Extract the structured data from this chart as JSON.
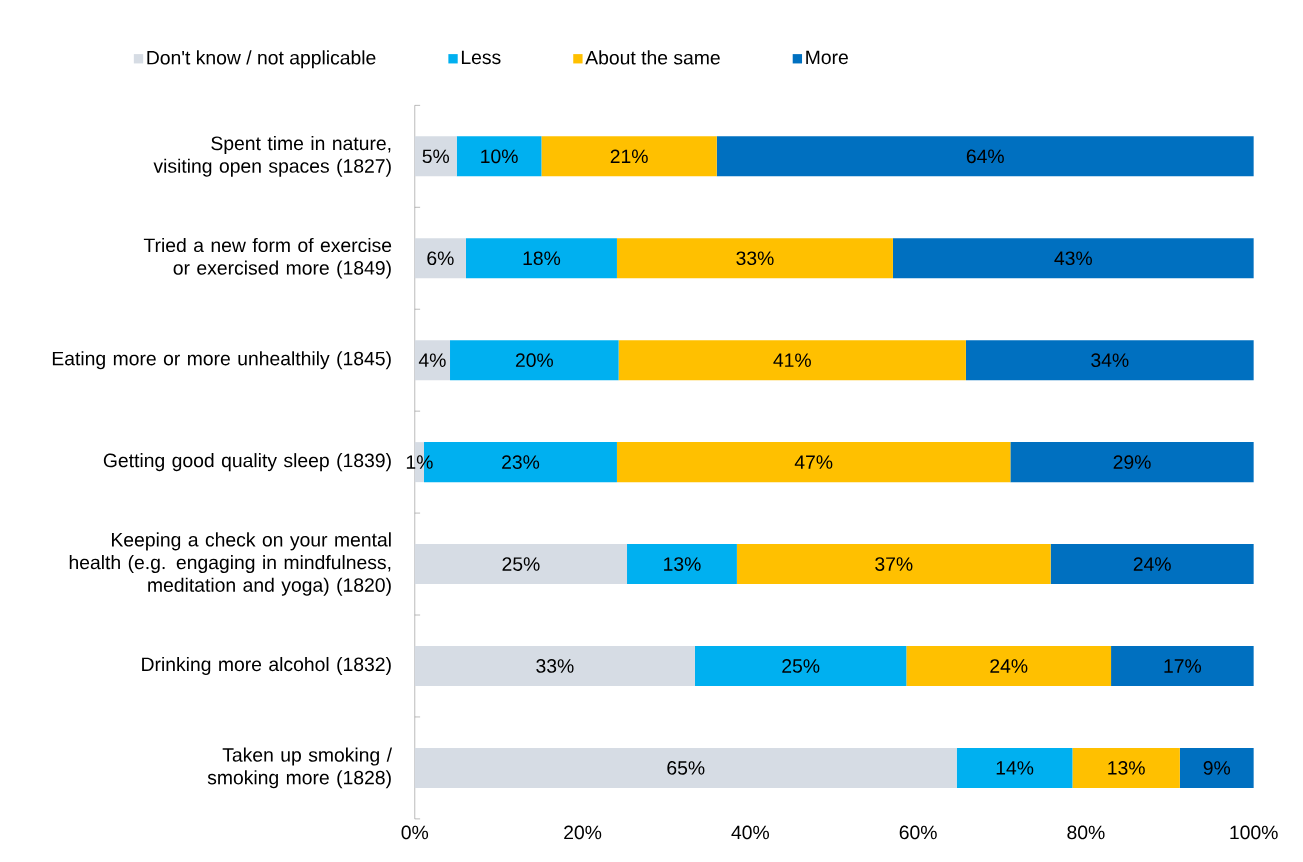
{
  "chart_data": {
    "type": "bar",
    "orientation": "horizontal",
    "stacked": true,
    "legend": "top",
    "grid": false,
    "categories": [
      "Spent time in nature, visiting open spaces (1827)",
      "Tried a new form of exercise or exercised more (1849)",
      "Eating more or more unhealthily (1845)",
      "Getting good quality sleep (1839)",
      "Keeping a check on your mental health (e.g. engaging in mindfulness, meditation and yoga) (1820)",
      "Drinking more alcohol (1832)",
      "Taken up smoking / smoking more (1828)"
    ],
    "xlim": [
      0,
      100
    ],
    "xticks": [
      {
        "value": 0,
        "label": "0%"
      },
      {
        "value": 20,
        "label": "20%"
      },
      {
        "value": 40,
        "label": "40%"
      },
      {
        "value": 60,
        "label": "60%"
      },
      {
        "value": 80,
        "label": "80%"
      },
      {
        "value": 100,
        "label": "100%"
      }
    ],
    "series": [
      {
        "name": "Don't know / not applicable",
        "color": "#d6dce4",
        "values": [
          5.0,
          6.1,
          4.2,
          1.1,
          25.3,
          33.4,
          64.6
        ],
        "value_labels": [
          "5%",
          "6%",
          "4%",
          "1%",
          "25%",
          "33%",
          "65%"
        ]
      },
      {
        "name": "Less",
        "color": "#00b0f0",
        "values": [
          10.1,
          18.0,
          20.1,
          23.0,
          13.1,
          25.2,
          13.8
        ],
        "value_labels": [
          "10%",
          "18%",
          "20%",
          "23%",
          "13%",
          "25%",
          "14%"
        ]
      },
      {
        "name": "About the same",
        "color": "#ffc000",
        "values": [
          20.9,
          32.9,
          41.4,
          46.9,
          37.4,
          24.4,
          12.8
        ],
        "value_labels": [
          "21%",
          "33%",
          "41%",
          "47%",
          "37%",
          "24%",
          "13%"
        ]
      },
      {
        "name": "More",
        "color": "#0070c0",
        "values": [
          64.0,
          43.0,
          34.3,
          29.0,
          24.2,
          17.0,
          8.8
        ],
        "value_labels": [
          "64%",
          "43%",
          "34%",
          "29%",
          "24%",
          "17%",
          "9%"
        ]
      }
    ]
  }
}
